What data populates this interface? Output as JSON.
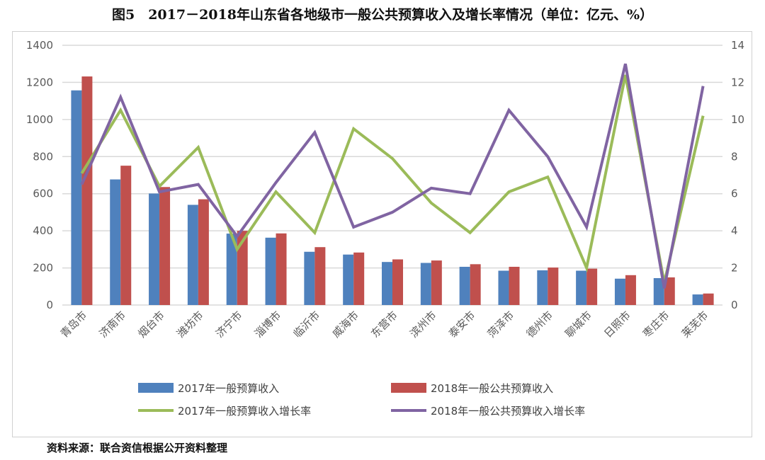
{
  "title": "图5　2017－2018年山东省各地级市一般公共预算收入及增长率情况（单位：亿元、%）",
  "source": "资料来源：联合资信根据公开资料整理",
  "chart_data": {
    "type": "bar+line",
    "categories": [
      "青岛市",
      "济南市",
      "烟台市",
      "潍坊市",
      "济宁市",
      "淄博市",
      "临沂市",
      "威海市",
      "东营市",
      "滨州市",
      "泰安市",
      "菏泽市",
      "德州市",
      "聊城市",
      "日照市",
      "枣庄市",
      "莱芜市"
    ],
    "left_axis": {
      "ylim": [
        0,
        1400
      ],
      "ticks": [
        "0",
        "200",
        "400",
        "600",
        "800",
        "1000",
        "1200",
        "1400"
      ]
    },
    "right_axis": {
      "ylim": [
        0,
        14
      ],
      "ticks": [
        "0",
        "2",
        "4",
        "6",
        "8",
        "10",
        "12",
        "14"
      ]
    },
    "grid": true,
    "legend_placement": "bottom",
    "series": [
      {
        "name": "2017年一般预算收入",
        "type": "bar",
        "axis": "left",
        "color": "#4f81bd",
        "values": [
          1157,
          677,
          601,
          540,
          385,
          363,
          287,
          272,
          232,
          227,
          206,
          185,
          187,
          185,
          142,
          145,
          57
        ]
      },
      {
        "name": "2018年一般公共预算收入",
        "type": "bar",
        "axis": "left",
        "color": "#c0504d",
        "values": [
          1232,
          751,
          636,
          570,
          400,
          386,
          312,
          283,
          246,
          240,
          220,
          206,
          202,
          196,
          161,
          149,
          62
        ]
      },
      {
        "name": "2017年一般预算收入增长率",
        "type": "line",
        "axis": "right",
        "color": "#9bbb59",
        "values": [
          7.1,
          10.5,
          6.4,
          8.5,
          3.0,
          6.1,
          3.9,
          9.5,
          7.9,
          5.5,
          3.9,
          6.1,
          6.9,
          2.0,
          12.4,
          1.2,
          10.2
        ]
      },
      {
        "name": "2018年一般公共预算收入增长率",
        "type": "line",
        "axis": "right",
        "color": "#8064a2",
        "values": [
          6.5,
          11.2,
          6.1,
          6.5,
          3.7,
          6.6,
          9.3,
          4.2,
          5.0,
          6.3,
          6.0,
          10.5,
          8.0,
          4.2,
          13.0,
          0.9,
          11.8
        ]
      }
    ]
  }
}
